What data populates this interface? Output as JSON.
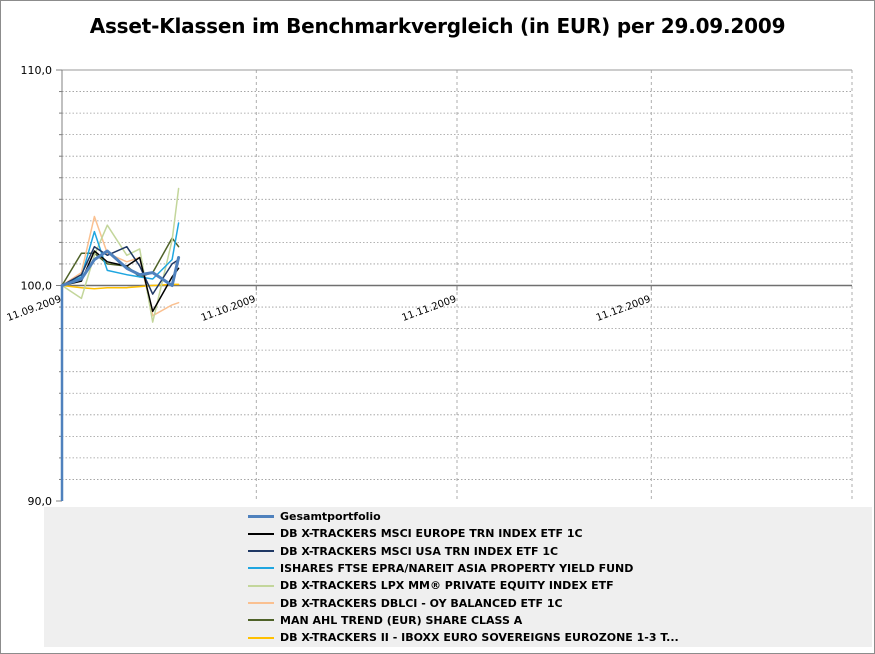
{
  "chart_data": {
    "type": "line",
    "title": "Asset-Klassen im Benchmarkvergleich (in EUR) per 29.09.2009",
    "ylim": [
      90,
      110
    ],
    "y_ticks": [
      "110,0",
      "100,0",
      "90,0"
    ],
    "x_ticks": [
      "11.09.2009",
      "11.10.2009",
      "11.11.2009",
      "11.12.2009"
    ],
    "xlim": [
      "2009-09-11",
      "2010-01-11"
    ],
    "grid": true,
    "legend_position": "bottom",
    "series": [
      {
        "name": "Gesamtportfolio",
        "color": "#4f81bd",
        "width": 3,
        "x": [
          "2009-09-11",
          "2009-09-14",
          "2009-09-16",
          "2009-09-18",
          "2009-09-21",
          "2009-09-23",
          "2009-09-25",
          "2009-09-28",
          "2009-09-29"
        ],
        "values": [
          100.0,
          100.3,
          101.2,
          101.6,
          100.8,
          100.5,
          100.6,
          100.0,
          101.3
        ]
      },
      {
        "name": "DB X-TRACKERS MSCI EUROPE TRN INDEX ETF 1C",
        "color": "#000000",
        "width": 1.5,
        "x": [
          "2009-09-11",
          "2009-09-14",
          "2009-09-16",
          "2009-09-18",
          "2009-09-21",
          "2009-09-23",
          "2009-09-25",
          "2009-09-28",
          "2009-09-29"
        ],
        "values": [
          100.0,
          100.2,
          101.6,
          101.1,
          100.9,
          101.3,
          98.8,
          100.4,
          100.8
        ]
      },
      {
        "name": "DB X-TRACKERS MSCI USA TRN INDEX ETF 1C",
        "color": "#1f3864",
        "width": 1.5,
        "x": [
          "2009-09-11",
          "2009-09-14",
          "2009-09-16",
          "2009-09-18",
          "2009-09-21",
          "2009-09-23",
          "2009-09-25",
          "2009-09-28",
          "2009-09-29"
        ],
        "values": [
          100.0,
          100.5,
          101.8,
          101.4,
          101.8,
          100.9,
          99.6,
          101.0,
          101.2
        ]
      },
      {
        "name": "ISHARES FTSE EPRA/NAREIT ASIA PROPERTY YIELD FUND",
        "color": "#1fa6e0",
        "width": 1.5,
        "x": [
          "2009-09-11",
          "2009-09-14",
          "2009-09-16",
          "2009-09-18",
          "2009-09-21",
          "2009-09-23",
          "2009-09-25",
          "2009-09-28",
          "2009-09-29"
        ],
        "values": [
          100.0,
          100.4,
          102.5,
          100.7,
          100.5,
          100.4,
          100.3,
          101.2,
          102.9
        ]
      },
      {
        "name": "DB X-TRACKERS LPX MM® PRIVATE EQUITY INDEX ETF",
        "color": "#c3d69b",
        "width": 1.5,
        "x": [
          "2009-09-11",
          "2009-09-14",
          "2009-09-16",
          "2009-09-18",
          "2009-09-21",
          "2009-09-23",
          "2009-09-25",
          "2009-09-28",
          "2009-09-29"
        ],
        "values": [
          100.0,
          99.4,
          101.4,
          102.8,
          101.4,
          101.7,
          98.3,
          102.1,
          104.5
        ]
      },
      {
        "name": "DB X-TRACKERS DBLCI - OY BALANCED ETF 1C",
        "color": "#fac090",
        "width": 1.5,
        "x": [
          "2009-09-11",
          "2009-09-14",
          "2009-09-16",
          "2009-09-18",
          "2009-09-21",
          "2009-09-23",
          "2009-09-25",
          "2009-09-28",
          "2009-09-29"
        ],
        "values": [
          100.0,
          100.6,
          103.2,
          101.5,
          101.1,
          101.3,
          98.6,
          99.1,
          99.2
        ]
      },
      {
        "name": "MAN AHL TREND (EUR) SHARE CLASS A",
        "color": "#4f6228",
        "width": 1.5,
        "x": [
          "2009-09-11",
          "2009-09-14",
          "2009-09-16",
          "2009-09-18",
          "2009-09-21",
          "2009-09-23",
          "2009-09-25",
          "2009-09-28",
          "2009-09-29"
        ],
        "values": [
          100.0,
          101.5,
          101.5,
          101.0,
          100.9,
          100.4,
          100.6,
          102.2,
          101.8
        ]
      },
      {
        "name": "DB X-TRACKERS II - IBOXX EURO SOVEREIGNS EUROZONE 1-3 T...",
        "color": "#ffc000",
        "width": 1.5,
        "x": [
          "2009-09-11",
          "2009-09-14",
          "2009-09-16",
          "2009-09-18",
          "2009-09-21",
          "2009-09-23",
          "2009-09-25",
          "2009-09-28",
          "2009-09-29"
        ],
        "values": [
          100.0,
          99.9,
          99.85,
          99.9,
          99.9,
          99.95,
          100.0,
          100.05,
          100.05
        ]
      }
    ]
  }
}
